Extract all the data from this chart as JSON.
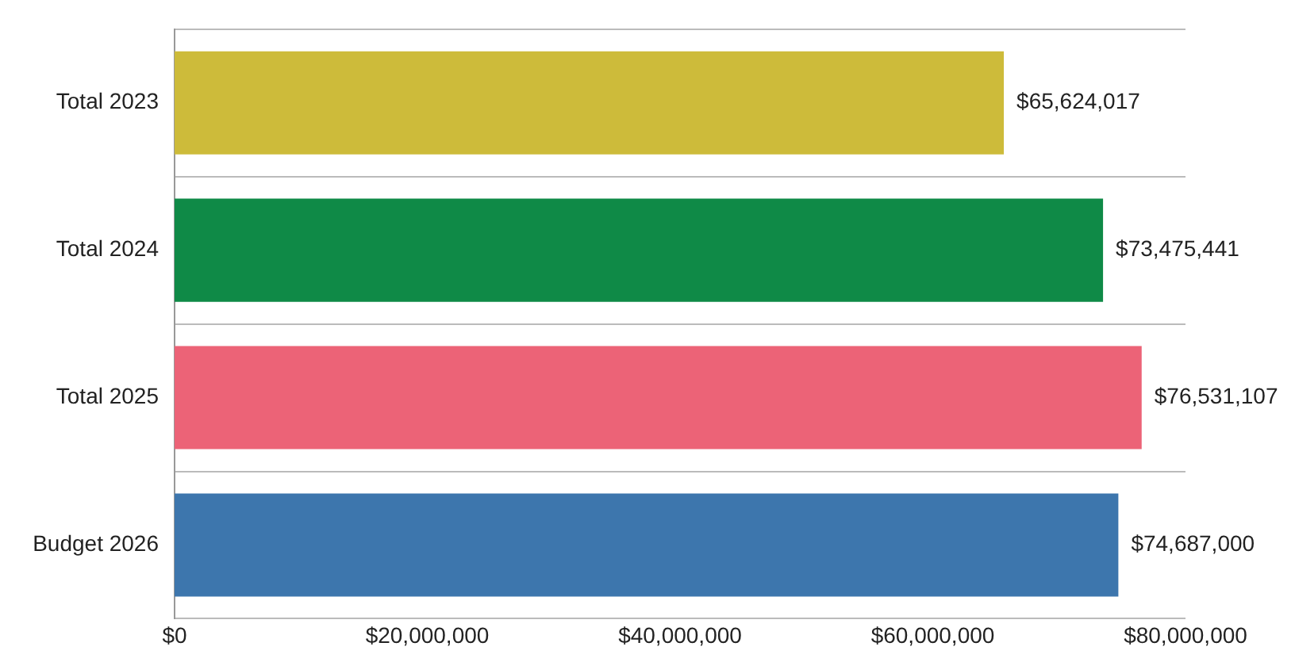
{
  "chart_data": {
    "type": "bar",
    "orientation": "horizontal",
    "categories": [
      "Total 2023",
      "Total 2024",
      "Total 2025",
      "Budget 2026"
    ],
    "values": [
      65624017,
      73475441,
      76531107,
      74687000
    ],
    "colors": [
      "#cdbb3a",
      "#0f8a47",
      "#ec6377",
      "#3d76ad"
    ],
    "value_labels": [
      "$65,624,017",
      "$73,475,441",
      "$76,531,107",
      "$74,687,000"
    ],
    "xlim": [
      0,
      80000000
    ],
    "xticks": [
      {
        "value": 0,
        "label": "$0"
      },
      {
        "value": 20000000,
        "label": "$20,000,000"
      },
      {
        "value": 40000000,
        "label": "$40,000,000"
      },
      {
        "value": 60000000,
        "label": "$60,000,000"
      },
      {
        "value": 80000000,
        "label": "$80,000,000"
      }
    ],
    "grid": "y",
    "legend": false
  }
}
